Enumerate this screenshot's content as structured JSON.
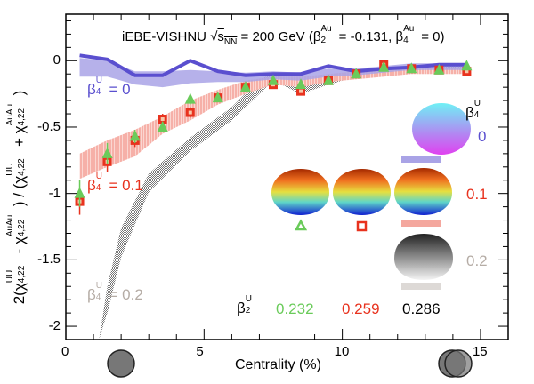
{
  "title": {
    "prefix": "iEBE-VISHNU ",
    "sqrt": "√",
    "s": "s",
    "s_sub": "NN",
    "mid": " = 200 GeV (β",
    "b2_sup": "Au",
    "b2_sub": "2",
    "mid2": " = -0.131, β",
    "b4_sup": "Au",
    "b4_sub": "4",
    "end": " = 0)"
  },
  "annotations": {
    "beta4_0": {
      "pre": "β",
      "sup": "U",
      "sub": "4",
      "val": " = 0",
      "color": "#5a4fcf"
    },
    "beta4_01": {
      "pre": "β",
      "sup": "U",
      "sub": "4",
      "val": " = 0.1",
      "color": "#e8321e"
    },
    "beta4_02": {
      "pre": "β",
      "sup": "U",
      "sub": "4",
      "val": " = 0.2",
      "color": "#b5aca5"
    },
    "legend_beta4_head": {
      "pre": "β",
      "sup": "U",
      "sub": "4"
    },
    "legend_beta4_values": [
      "0",
      "0.1",
      "0.2"
    ],
    "legend_beta2_head": {
      "pre": "β",
      "sup": "U",
      "sub": "2"
    },
    "legend_beta2_values": [
      "0.232",
      "0.259",
      "0.286"
    ]
  },
  "chart_data": {
    "type": "line",
    "xlabel": "Centrality (%)",
    "ylabel": {
      "a": "2",
      "b": "χ",
      "sup1": "UU",
      "sub1": "4,22",
      "c": " - χ",
      "sup2": "AuAu",
      "sub2": "4,22",
      "d": " / ",
      "e": "χ",
      "sup3": "UU",
      "sub3": "4,22",
      "f": " + χ",
      "sup4": "AuAu",
      "sub4": "4,22"
    },
    "xlim": [
      0,
      16
    ],
    "ylim": [
      -2.1,
      0.35
    ],
    "xticks": [
      0,
      5,
      10,
      15
    ],
    "xtick_labels": [
      "0",
      "5",
      "10",
      "15"
    ],
    "yticks": [
      0,
      -0.5,
      -1,
      -1.5,
      -2
    ],
    "ytick_labels": [
      "0",
      "-0.5",
      "-1",
      "-1.5",
      "-2"
    ],
    "x": [
      0.5,
      1.5,
      2.5,
      3.5,
      4.5,
      5.5,
      6.5,
      7.5,
      8.5,
      9.5,
      10.5,
      11.5,
      12.5,
      13.5,
      14.5
    ],
    "series": [
      {
        "kind": "line",
        "color": "#5a4fcf",
        "values": [
          0.04,
          0.01,
          -0.11,
          -0.11,
          0.0,
          -0.08,
          -0.11,
          -0.1,
          -0.1,
          -0.04,
          -0.08,
          -0.06,
          -0.05,
          -0.03,
          -0.03
        ]
      },
      {
        "kind": "band",
        "color": "#a9a3e6",
        "lower": [
          -0.12,
          -0.12,
          -0.18,
          -0.2,
          -0.17,
          -0.16,
          -0.16,
          -0.14,
          -0.15,
          -0.12,
          -0.11,
          -0.09,
          -0.07,
          -0.07,
          -0.07
        ],
        "upper": [
          0.02,
          0.0,
          -0.08,
          -0.08,
          -0.07,
          -0.08,
          -0.09,
          -0.08,
          -0.09,
          -0.06,
          -0.06,
          -0.04,
          -0.02,
          -0.02,
          -0.02
        ]
      },
      {
        "kind": "band",
        "color": "#f4a79e",
        "lower": [
          -0.89,
          -0.8,
          -0.72,
          -0.55,
          -0.45,
          -0.33,
          -0.25,
          -0.18,
          -0.2,
          -0.16,
          -0.14,
          -0.12,
          -0.1,
          -0.1,
          -0.1
        ],
        "upper": [
          -0.7,
          -0.6,
          -0.52,
          -0.42,
          -0.3,
          -0.22,
          -0.15,
          -0.12,
          -0.12,
          -0.1,
          -0.08,
          -0.06,
          -0.05,
          -0.05,
          -0.05
        ]
      },
      {
        "kind": "band",
        "color": "#9a9a9a",
        "x": [
          1.2,
          1.5,
          2,
          3,
          4.5,
          6,
          7,
          7.5,
          8.5,
          9.5,
          10.5,
          12,
          14.5
        ],
        "lower": [
          -2.1,
          -1.9,
          -1.48,
          -0.99,
          -0.68,
          -0.45,
          -0.25,
          -0.15,
          -0.25,
          -0.18,
          -0.12,
          -0.1,
          -0.08
        ],
        "upper": [
          -2.1,
          -1.7,
          -1.26,
          -0.85,
          -0.58,
          -0.35,
          -0.14,
          -0.1,
          -0.18,
          -0.12,
          -0.08,
          -0.05,
          -0.04
        ]
      },
      {
        "kind": "marker",
        "marker": "square",
        "color": "#e8321e",
        "values": [
          -1.06,
          -0.76,
          -0.6,
          -0.44,
          -0.39,
          -0.28,
          -0.2,
          -0.18,
          -0.23,
          -0.15,
          -0.1,
          -0.03,
          -0.06,
          -0.07,
          -0.08
        ],
        "err": [
          0.1,
          0.08,
          0.05,
          0.04,
          0.04,
          0.03,
          0.03,
          0.02,
          0.02,
          0.02,
          0.02,
          0.02,
          0.02,
          0.02,
          0.02
        ]
      },
      {
        "kind": "marker",
        "marker": "triangle",
        "color": "#6acb5a",
        "values": [
          -1.0,
          -0.7,
          -0.57,
          -0.5,
          -0.29,
          -0.28,
          -0.2,
          -0.15,
          -0.18,
          -0.15,
          -0.1,
          -0.05,
          -0.06,
          -0.07,
          -0.04
        ],
        "err": [
          0.1,
          0.08,
          0.05,
          0.04,
          0.04,
          0.03,
          0.03,
          0.02,
          0.02,
          0.02,
          0.02,
          0.02,
          0.02,
          0.02,
          0.02
        ]
      }
    ]
  }
}
